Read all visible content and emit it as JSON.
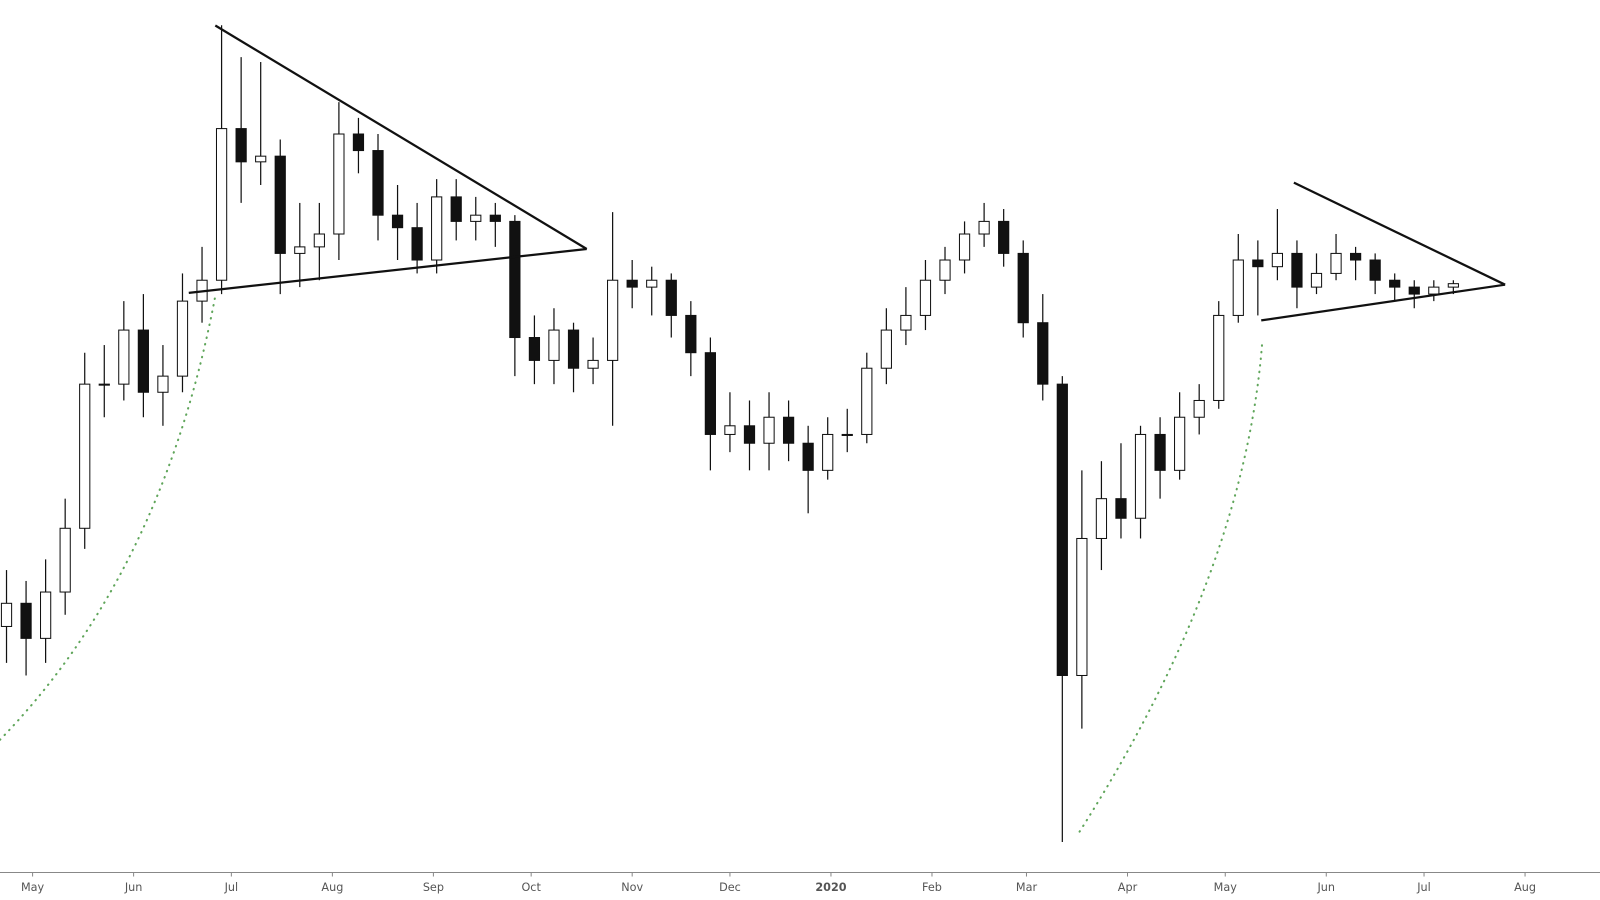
{
  "chart_data": {
    "type": "candlestick",
    "x": [
      -8,
      -2,
      4,
      10,
      16,
      22,
      28,
      34,
      40,
      46,
      52,
      58,
      64,
      70,
      76,
      82,
      88,
      94,
      100,
      106,
      112,
      118,
      124,
      130,
      136,
      142,
      148,
      154,
      160,
      166,
      172,
      178,
      184,
      190,
      196,
      202,
      208,
      214,
      220,
      226,
      232,
      238,
      244,
      250,
      256,
      262,
      268,
      274,
      280,
      286,
      292,
      298,
      304,
      310,
      316,
      322,
      328,
      334,
      340,
      346,
      352,
      358,
      364,
      370,
      376,
      382,
      388,
      394,
      400,
      406,
      412,
      418,
      424,
      430,
      436
    ],
    "open": [
      5400,
      5600,
      5300,
      5700,
      6300,
      7900,
      7900,
      8600,
      7800,
      8000,
      9000,
      9300,
      11800,
      11200,
      11300,
      9700,
      9800,
      10000,
      11700,
      11400,
      10300,
      10100,
      9600,
      10600,
      10200,
      10300,
      10200,
      8500,
      8200,
      8600,
      8100,
      8200,
      9300,
      9200,
      9300,
      8800,
      8300,
      7300,
      7400,
      7200,
      7500,
      7200,
      6900,
      7300,
      7300,
      8100,
      8600,
      8800,
      9300,
      9600,
      10000,
      10200,
      9700,
      8700,
      7900,
      5000,
      6200,
      6600,
      6400,
      7300,
      6900,
      7500,
      7700,
      8800,
      9600,
      9500,
      9700,
      9200,
      9400,
      9700,
      9600,
      9300,
      9200,
      9100,
      9200
    ],
    "high": [
      5900,
      5800,
      6000,
      6600,
      8300,
      8400,
      9000,
      9100,
      8400,
      9400,
      9800,
      13880,
      13200,
      13100,
      11600,
      10500,
      10500,
      12300,
      12000,
      11700,
      10800,
      10500,
      10900,
      10900,
      10600,
      10500,
      10300,
      8800,
      8900,
      8700,
      8500,
      10350,
      9600,
      9500,
      9400,
      9000,
      8500,
      7800,
      7700,
      7800,
      7700,
      7400,
      7500,
      7600,
      8300,
      8900,
      9200,
      9600,
      9800,
      10200,
      10500,
      10400,
      9900,
      9100,
      8000,
      6900,
      7000,
      7200,
      7400,
      7500,
      7800,
      7900,
      9000,
      10000,
      9900,
      10400,
      9900,
      9700,
      10000,
      9800,
      9700,
      9400,
      9300,
      9300,
      9300
    ],
    "low": [
      5100,
      5000,
      5100,
      5500,
      6100,
      7500,
      7700,
      7500,
      7400,
      7800,
      8700,
      9100,
      10500,
      10800,
      9100,
      9200,
      9300,
      9600,
      11000,
      9900,
      9600,
      9400,
      9400,
      9900,
      9900,
      9800,
      8000,
      7900,
      7900,
      7800,
      7900,
      7400,
      8900,
      8800,
      8500,
      8000,
      6900,
      7100,
      6900,
      6900,
      7000,
      6450,
      6800,
      7100,
      7200,
      7900,
      8400,
      8600,
      9100,
      9400,
      9800,
      9500,
      8500,
      7700,
      3850,
      4600,
      5900,
      6200,
      6200,
      6600,
      6800,
      7300,
      7600,
      8700,
      8800,
      9300,
      8900,
      9100,
      9300,
      9300,
      9100,
      9000,
      8900,
      9000,
      9100
    ],
    "close": [
      5600,
      5300,
      5700,
      6300,
      7900,
      7900,
      8600,
      7800,
      8000,
      9000,
      9300,
      11800,
      11200,
      11300,
      9700,
      9800,
      10000,
      11700,
      11400,
      10300,
      10100,
      9600,
      10600,
      10200,
      10300,
      10200,
      8500,
      8200,
      8600,
      8100,
      8200,
      9300,
      9200,
      9300,
      8800,
      8300,
      7300,
      7400,
      7200,
      7500,
      7200,
      6900,
      7300,
      7300,
      8100,
      8600,
      8800,
      9300,
      9600,
      10000,
      10200,
      9700,
      8700,
      7900,
      5000,
      6200,
      6600,
      6400,
      7300,
      6900,
      7500,
      7700,
      8800,
      9600,
      9500,
      9700,
      9200,
      9400,
      9700,
      9600,
      9300,
      9200,
      9100,
      9200,
      9250
    ],
    "xlim": [
      -10,
      481
    ],
    "xticks": [
      {
        "value": 0,
        "label": "May"
      },
      {
        "value": 31,
        "label": "Jun"
      },
      {
        "value": 61,
        "label": "Jul"
      },
      {
        "value": 92,
        "label": "Aug"
      },
      {
        "value": 123,
        "label": "Sep"
      },
      {
        "value": 153,
        "label": "Oct"
      },
      {
        "value": 184,
        "label": "Nov"
      },
      {
        "value": 214,
        "label": "Dec"
      },
      {
        "value": 245,
        "label": "2020"
      },
      {
        "value": 276,
        "label": "Feb"
      },
      {
        "value": 305,
        "label": "Mar"
      },
      {
        "value": 336,
        "label": "Apr"
      },
      {
        "value": 366,
        "label": "May"
      },
      {
        "value": 397,
        "label": "Jun"
      },
      {
        "value": 427,
        "label": "Jul"
      },
      {
        "value": 458,
        "label": "Aug"
      }
    ],
    "ylim": [
      3670,
      14440
    ],
    "log_scale": true,
    "up_color": "#ffffff",
    "down_color": "#111111",
    "wick_color": "#111111"
  }
}
